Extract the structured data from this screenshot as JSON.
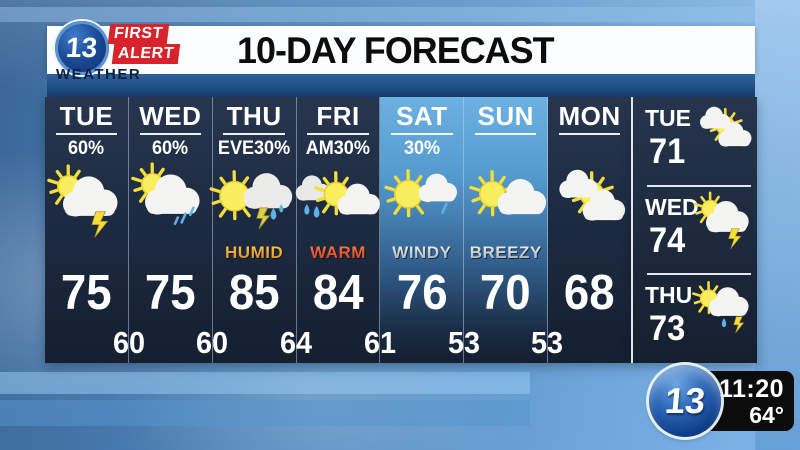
{
  "header": {
    "title": "10-DAY FORECAST",
    "logo": {
      "station_number": "13",
      "line1": "FIRST",
      "line2": "ALERT",
      "line3": "WEATHER"
    }
  },
  "forecast": {
    "days": [
      {
        "label": "TUE",
        "precip": "60%",
        "icon": "sun-cloud-lightning",
        "condition": "",
        "condition_style": "",
        "high": "75",
        "highlight": false
      },
      {
        "label": "WED",
        "precip": "60%",
        "icon": "sun-cloud-rain",
        "condition": "",
        "condition_style": "",
        "high": "75",
        "highlight": false
      },
      {
        "label": "THU",
        "precip": "EVE30%",
        "icon": "sun-storm-cloud",
        "condition": "HUMID",
        "condition_style": "humid",
        "high": "85",
        "highlight": false
      },
      {
        "label": "FRI",
        "precip": "AM30%",
        "icon": "rain-cloud-sun-cloud",
        "condition": "WARM",
        "condition_style": "warm",
        "high": "84",
        "highlight": false
      },
      {
        "label": "SAT",
        "precip": "30%",
        "icon": "sun-cloud-shower",
        "condition": "WINDY",
        "condition_style": "wind",
        "high": "76",
        "highlight": true
      },
      {
        "label": "SUN",
        "precip": "",
        "icon": "sun-cloud",
        "condition": "BREEZY",
        "condition_style": "wind",
        "high": "70",
        "highlight": true
      },
      {
        "label": "MON",
        "precip": "",
        "icon": "cloud-sun-cloud",
        "condition": "",
        "condition_style": "",
        "high": "68",
        "highlight": false
      }
    ],
    "overnight_lows": [
      "60",
      "60",
      "64",
      "61",
      "53",
      "53"
    ]
  },
  "extended": {
    "days": [
      {
        "label": "TUE",
        "high": "71",
        "icon": "cloud-sun-cloud"
      },
      {
        "label": "WED",
        "high": "74",
        "icon": "sun-cloud-lightning"
      },
      {
        "label": "THU",
        "high": "73",
        "icon": "sun-cloud-rain-lightning"
      }
    ]
  },
  "bug": {
    "station": "13",
    "time": "11:20",
    "temp": "64°"
  },
  "colors": {
    "accent_red": "#d9232a",
    "navy_mid": "#27364e",
    "highlight_blue": "#6cb1e1",
    "strip_blue": "#1d4a80",
    "sun_yellow": "#f5dd3a",
    "cloud_white": "#f4f5f2",
    "rain_blue": "#5fb0e8",
    "humid_top": "#ffd54a",
    "humid_bottom": "#e0701c",
    "warm_top": "#ff9040",
    "warm_bottom": "#d71f1f",
    "wind_top": "#ffffff",
    "wind_bottom": "#8e9aa6",
    "bug_bg": "#0c0c0c"
  }
}
